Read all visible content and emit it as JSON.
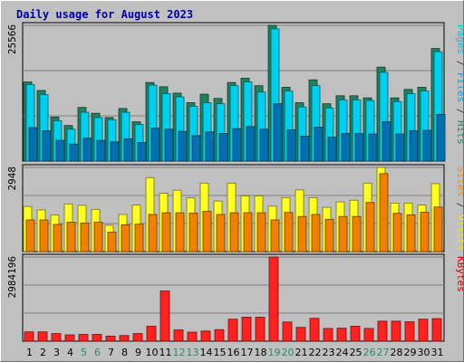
{
  "chart_data": {
    "type": "bar",
    "title": "Daily usage for August 2023",
    "categories": [
      "1",
      "2",
      "3",
      "4",
      "5",
      "6",
      "7",
      "8",
      "9",
      "10",
      "11",
      "12",
      "13",
      "14",
      "15",
      "16",
      "17",
      "18",
      "19",
      "20",
      "21",
      "22",
      "23",
      "24",
      "25",
      "26",
      "27",
      "28",
      "29",
      "30",
      "31"
    ],
    "weekend_days": [
      "5",
      "6",
      "12",
      "13",
      "19",
      "20",
      "26",
      "27"
    ],
    "panels": [
      {
        "id": "hits-panel",
        "max_label": "25566",
        "ylim": [
          0,
          25566
        ],
        "ylabel_parts": [
          {
            "text": "Pages",
            "color": "#00c8d8"
          },
          {
            "text": " / ",
            "color": "#404040"
          },
          {
            "text": "Files",
            "color": "#00a8e8"
          },
          {
            "text": " / ",
            "color": "#404040"
          },
          {
            "text": "Hits",
            "color": "#2a8a6a"
          }
        ],
        "series": [
          {
            "name": "Hits",
            "color": "#208060",
            "values": [
              14900,
              13300,
              8300,
              6700,
              10100,
              9000,
              8200,
              9900,
              7400,
              14800,
              14000,
              12800,
              11000,
              12600,
              11800,
              14800,
              15600,
              14200,
              25566,
              13900,
              11000,
              15300,
              10800,
              12300,
              12300,
              11900,
              17700,
              11900,
              13500,
              13900,
              21200
            ]
          },
          {
            "name": "Files",
            "color": "#00d0f0",
            "values": [
              14400,
              12500,
              7600,
              6000,
              9200,
              8200,
              7800,
              9200,
              6900,
              14300,
              12700,
              12100,
              10300,
              11000,
              10800,
              14200,
              14900,
              13000,
              24900,
              13200,
              10200,
              14200,
              10000,
              11500,
              11500,
              11400,
              16700,
              11200,
              12700,
              13200,
              20600
            ]
          },
          {
            "name": "Pages",
            "color": "#0070b0",
            "values": [
              6300,
              5700,
              3900,
              3200,
              4300,
              3900,
              3600,
              4200,
              3500,
              6200,
              6000,
              5600,
              4800,
              5500,
              5200,
              6100,
              6500,
              6000,
              10800,
              5900,
              4700,
              6400,
              4500,
              5200,
              5200,
              5100,
              7400,
              5100,
              5700,
              5800,
              8800
            ]
          }
        ]
      },
      {
        "id": "visits-panel",
        "max_label": "2948",
        "ylim": [
          0,
          2948
        ],
        "ylabel_parts": [
          {
            "text": "Sites",
            "color": "#e89020"
          },
          {
            "text": " / ",
            "color": "#404040"
          },
          {
            "text": "Visits",
            "color": "#e8e800"
          }
        ],
        "series": [
          {
            "name": "Visits",
            "color": "#ffff20",
            "values": [
              1580,
              1460,
              1280,
              1670,
              1620,
              1480,
              920,
              1300,
              1630,
              2590,
              2040,
              2150,
              1880,
              2400,
              1770,
              2400,
              1950,
              1950,
              1590,
              1890,
              2160,
              1890,
              1550,
              1740,
              1800,
              2400,
              2948,
              1700,
              1700,
              1630,
              2380
            ]
          },
          {
            "name": "Sites",
            "color": "#f08000",
            "values": [
              1110,
              1110,
              950,
              1030,
              1000,
              1030,
              680,
              940,
              960,
              1300,
              1360,
              1360,
              1350,
              1410,
              1300,
              1360,
              1360,
              1360,
              1110,
              1370,
              1230,
              1300,
              1130,
              1230,
              1230,
              1720,
              2730,
              1340,
              1290,
              1380,
              1560
            ]
          }
        ]
      },
      {
        "id": "kbytes-panel",
        "max_label": "2984196",
        "ylim": [
          0,
          2984196
        ],
        "ylabel_parts": [
          {
            "text": "KBytes",
            "color": "#e00000"
          }
        ],
        "series": [
          {
            "name": "KBytes",
            "color": "#ff2020",
            "values": [
              330000,
              330000,
              270000,
              225000,
              240000,
              240000,
              180000,
              200000,
              270000,
              530000,
              1780000,
              400000,
              320000,
              360000,
              410000,
              780000,
              850000,
              850000,
              2984196,
              680000,
              490000,
              810000,
              450000,
              460000,
              530000,
              450000,
              710000,
              710000,
              690000,
              780000,
              800000
            ]
          }
        ]
      }
    ]
  }
}
